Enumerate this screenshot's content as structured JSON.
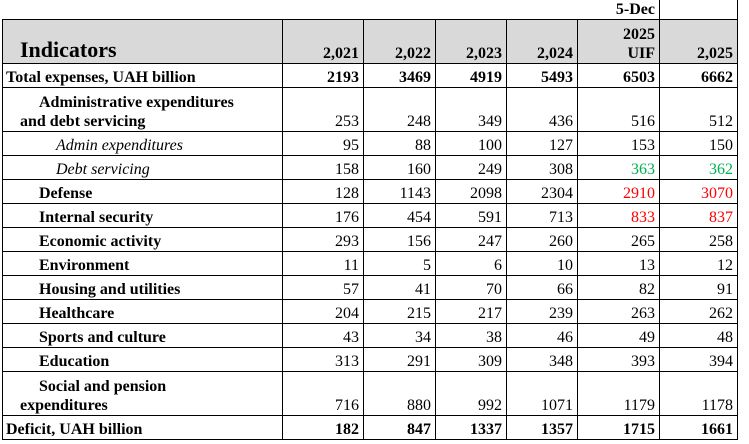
{
  "header": {
    "date_note": "5-Dec",
    "indicators_label": "Indicators",
    "columns": [
      "2,021",
      "2,022",
      "2,023",
      "2,024",
      "2025 UIF",
      "2,025"
    ],
    "uif_year": "2025",
    "uif_label": "UIF"
  },
  "rows": [
    {
      "label": "Total expenses, UAH billion",
      "values": [
        "2193",
        "3469",
        "4919",
        "5493",
        "6503",
        "6662"
      ]
    },
    {
      "label_line1": "Administrative expenditures",
      "label_line2": "and debt servicing",
      "values": [
        "253",
        "248",
        "349",
        "436",
        "516",
        "512"
      ]
    },
    {
      "label": "Admin expenditures",
      "values": [
        "95",
        "88",
        "100",
        "127",
        "153",
        "150"
      ]
    },
    {
      "label": "Debt servicing",
      "values": [
        "158",
        "160",
        "249",
        "308",
        "363",
        "362"
      ]
    },
    {
      "label": "Defense",
      "values": [
        "128",
        "1143",
        "2098",
        "2304",
        "2910",
        "3070"
      ]
    },
    {
      "label": "Internal security",
      "values": [
        "176",
        "454",
        "591",
        "713",
        "833",
        "837"
      ]
    },
    {
      "label": "Economic activity",
      "values": [
        "293",
        "156",
        "247",
        "260",
        "265",
        "258"
      ]
    },
    {
      "label": "Environment",
      "values": [
        "11",
        "5",
        "6",
        "10",
        "13",
        "12"
      ]
    },
    {
      "label": "Housing and utilities",
      "values": [
        "57",
        "41",
        "70",
        "66",
        "82",
        "91"
      ]
    },
    {
      "label": "Healthcare",
      "values": [
        "204",
        "215",
        "217",
        "239",
        "263",
        "262"
      ]
    },
    {
      "label": "Sports and culture",
      "values": [
        "43",
        "34",
        "38",
        "46",
        "49",
        "48"
      ]
    },
    {
      "label": "Education",
      "values": [
        "313",
        "291",
        "309",
        "348",
        "393",
        "394"
      ]
    },
    {
      "label_line1": "Social and pension",
      "label_line2": "expenditures",
      "values": [
        "716",
        "880",
        "992",
        "1071",
        "1179",
        "1178"
      ]
    },
    {
      "label": "Deficit, UAH billion",
      "values": [
        "182",
        "847",
        "1337",
        "1357",
        "1715",
        "1661"
      ]
    }
  ],
  "colors": {
    "highlight_green": "#00b050",
    "highlight_red": "#ff0000",
    "header_bg": "#d9d9d9"
  }
}
